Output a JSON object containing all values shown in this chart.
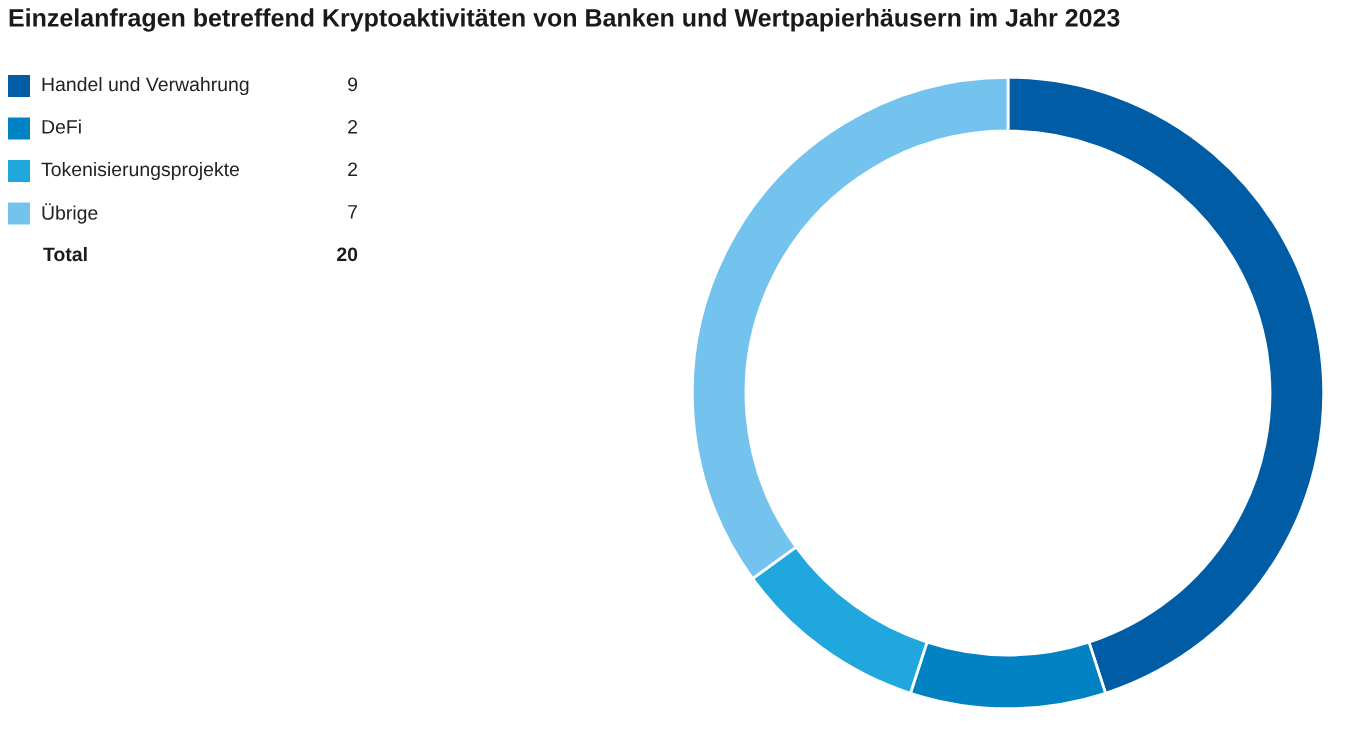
{
  "chart_data": {
    "type": "donut",
    "title": "Einzelanfragen betreffend Kryptoaktivitäten von Banken und Wertpapierhäusern im Jahr 2023",
    "categories": [
      "Handel und Verwahrung",
      "DeFi",
      "Tokenisierungsprojekte",
      "Übrige"
    ],
    "values": [
      9,
      2,
      2,
      7
    ],
    "colors": [
      "#005ca5",
      "#0082c3",
      "#20a8de",
      "#73c3ee"
    ],
    "data_labels": true,
    "totals": [
      "20"
    ],
    "annotations": [
      "Total"
    ],
    "legend": "top left"
  }
}
